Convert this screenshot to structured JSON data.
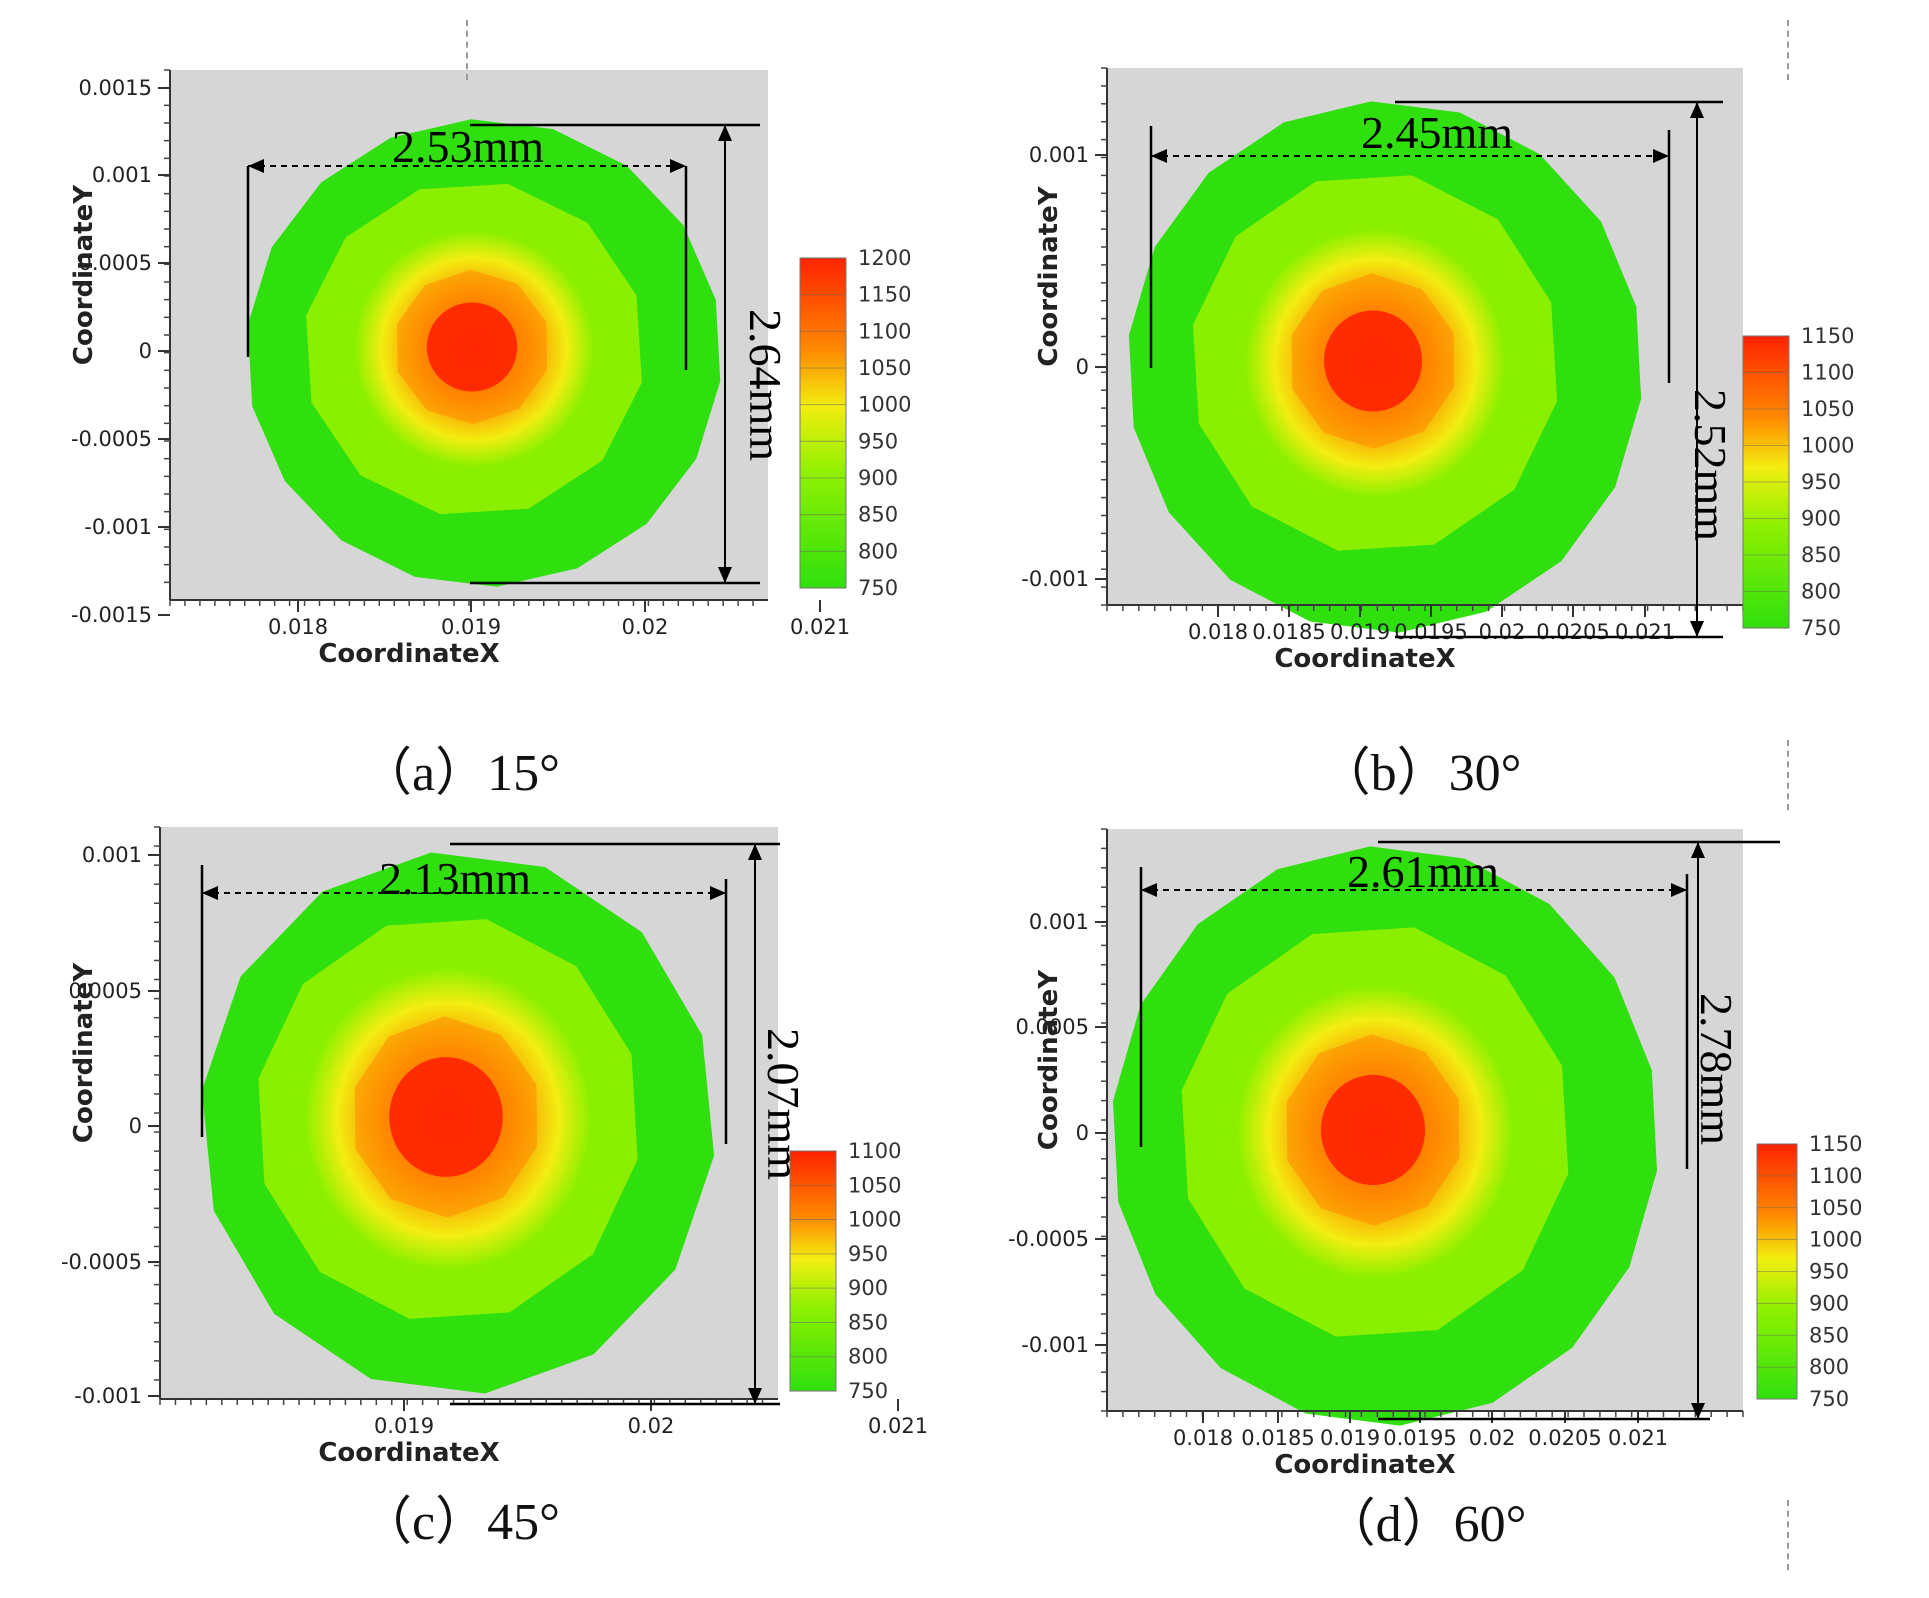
{
  "chart_data": [
    {
      "type": "heatmap",
      "caption": "（a）15°",
      "xlabel": "CoordinateX",
      "ylabel": "CoordinateY",
      "xticks": [
        "0.018",
        "0.019",
        "0.02",
        "0.021"
      ],
      "yticks": [
        "0.0015",
        "0.001",
        "0.0005",
        "0",
        "-0.0005",
        "-0.001",
        "-0.0015"
      ],
      "legend": [
        "1200",
        "1150",
        "1100",
        "1050",
        "1000",
        "950",
        "900",
        "850",
        "800",
        "750"
      ],
      "width_label": "2.53mm",
      "height_label": "2.64mm",
      "width_mm": 2.53,
      "height_mm": 2.64,
      "peak_value": 1200,
      "min_value": 750
    },
    {
      "type": "heatmap",
      "caption": "（b）30°",
      "xlabel": "CoordinateX",
      "ylabel": "CoordinateY",
      "xticks": [
        "0.018",
        "0.0185",
        "0.019",
        "0.0195",
        "0.02",
        "0.0205",
        "0.021"
      ],
      "yticks": [
        "0.001",
        "0",
        "-0.001"
      ],
      "legend": [
        "1150",
        "1100",
        "1050",
        "1000",
        "950",
        "900",
        "850",
        "800",
        "750"
      ],
      "width_label": "2.45mm",
      "height_label": "2.52mm",
      "width_mm": 2.45,
      "height_mm": 2.52,
      "peak_value": 1150,
      "min_value": 750
    },
    {
      "type": "heatmap",
      "caption": "（c）45°",
      "xlabel": "CoordinateX",
      "ylabel": "CoordinateY",
      "xticks": [
        "0.019",
        "0.02",
        "0.021"
      ],
      "yticks": [
        "0.001",
        "0.0005",
        "0",
        "-0.0005",
        "-0.001"
      ],
      "legend": [
        "1100",
        "1050",
        "1000",
        "950",
        "900",
        "850",
        "800",
        "750"
      ],
      "width_label": "2.13mm",
      "height_label": "2.07mm",
      "width_mm": 2.13,
      "height_mm": 2.07,
      "peak_value": 1100,
      "min_value": 750
    },
    {
      "type": "heatmap",
      "caption": "（d）60°",
      "xlabel": "CoordinateX",
      "ylabel": "CoordinateY",
      "xticks": [
        "0.018",
        "0.0185",
        "0.019",
        "0.0195",
        "0.02",
        "0.0205",
        "0.021"
      ],
      "yticks": [
        "0.001",
        "0.0005",
        "0",
        "-0.0005",
        "-0.001"
      ],
      "legend": [
        "1150",
        "1100",
        "1050",
        "1000",
        "950",
        "900",
        "850",
        "800",
        "750"
      ],
      "width_label": "2.61mm",
      "height_label": "2.78mm",
      "width_mm": 2.61,
      "height_mm": 2.78,
      "peak_value": 1150,
      "min_value": 750
    }
  ],
  "colors": {
    "plot_bg": "#d6d6d6",
    "outer": "#2fe00e",
    "mid": "#8ff000",
    "yellow": "#f2ee10",
    "orange": "#ff8a00",
    "core": "#ff2200"
  }
}
